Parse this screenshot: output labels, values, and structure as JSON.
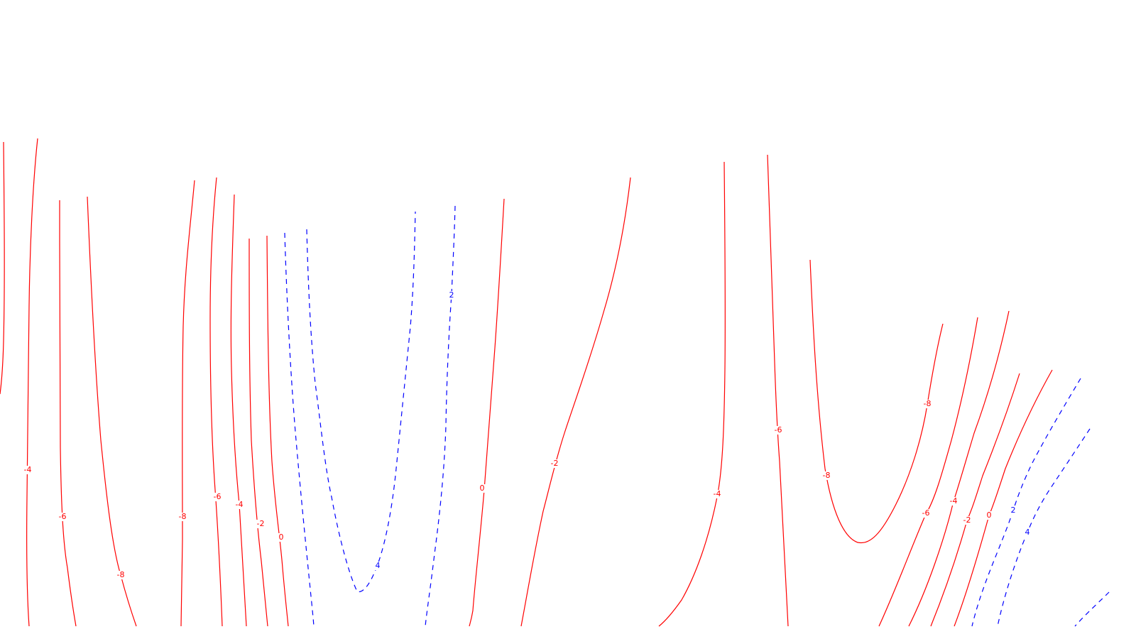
{
  "chart_data": {
    "type": "contour",
    "title": "",
    "xlabel": "",
    "ylabel": "",
    "grid": false,
    "legend": "none",
    "colors": {
      "negative": "#ff0000",
      "positive": "#0000ff"
    },
    "line_styles": {
      "negative": "solid",
      "positive": "dashed"
    },
    "contours": [
      {
        "id": "c01",
        "level": "-4",
        "sign": "neg"
      },
      {
        "id": "c02",
        "level": "-6",
        "sign": "neg"
      },
      {
        "id": "c03",
        "level": "-8",
        "sign": "neg"
      },
      {
        "id": "c04",
        "level": "-8",
        "sign": "neg"
      },
      {
        "id": "c05",
        "level": "-6",
        "sign": "neg"
      },
      {
        "id": "c06",
        "level": "-4",
        "sign": "neg"
      },
      {
        "id": "c07",
        "level": "-2",
        "sign": "neg"
      },
      {
        "id": "c08",
        "level": "0",
        "sign": "neg"
      },
      {
        "id": "c09",
        "level": "4",
        "sign": "pos"
      },
      {
        "id": "c10",
        "level": "2",
        "sign": "pos"
      },
      {
        "id": "c11",
        "level": "0",
        "sign": "neg"
      },
      {
        "id": "c12",
        "level": "-2",
        "sign": "neg"
      },
      {
        "id": "c13",
        "level": "-4",
        "sign": "neg"
      },
      {
        "id": "c14",
        "level": "-6",
        "sign": "neg"
      },
      {
        "id": "c15",
        "level": "-8",
        "sign": "neg"
      },
      {
        "id": "c16",
        "level": "-8",
        "sign": "neg"
      },
      {
        "id": "c17",
        "level": "-6",
        "sign": "neg"
      },
      {
        "id": "c18",
        "level": "-4",
        "sign": "neg"
      },
      {
        "id": "c19",
        "level": "-2",
        "sign": "neg"
      },
      {
        "id": "c20",
        "level": "0",
        "sign": "neg"
      },
      {
        "id": "c21",
        "level": "2",
        "sign": "pos"
      },
      {
        "id": "c22",
        "level": "4",
        "sign": "pos"
      },
      {
        "id": "c23",
        "level": "",
        "sign": "pos"
      }
    ]
  }
}
